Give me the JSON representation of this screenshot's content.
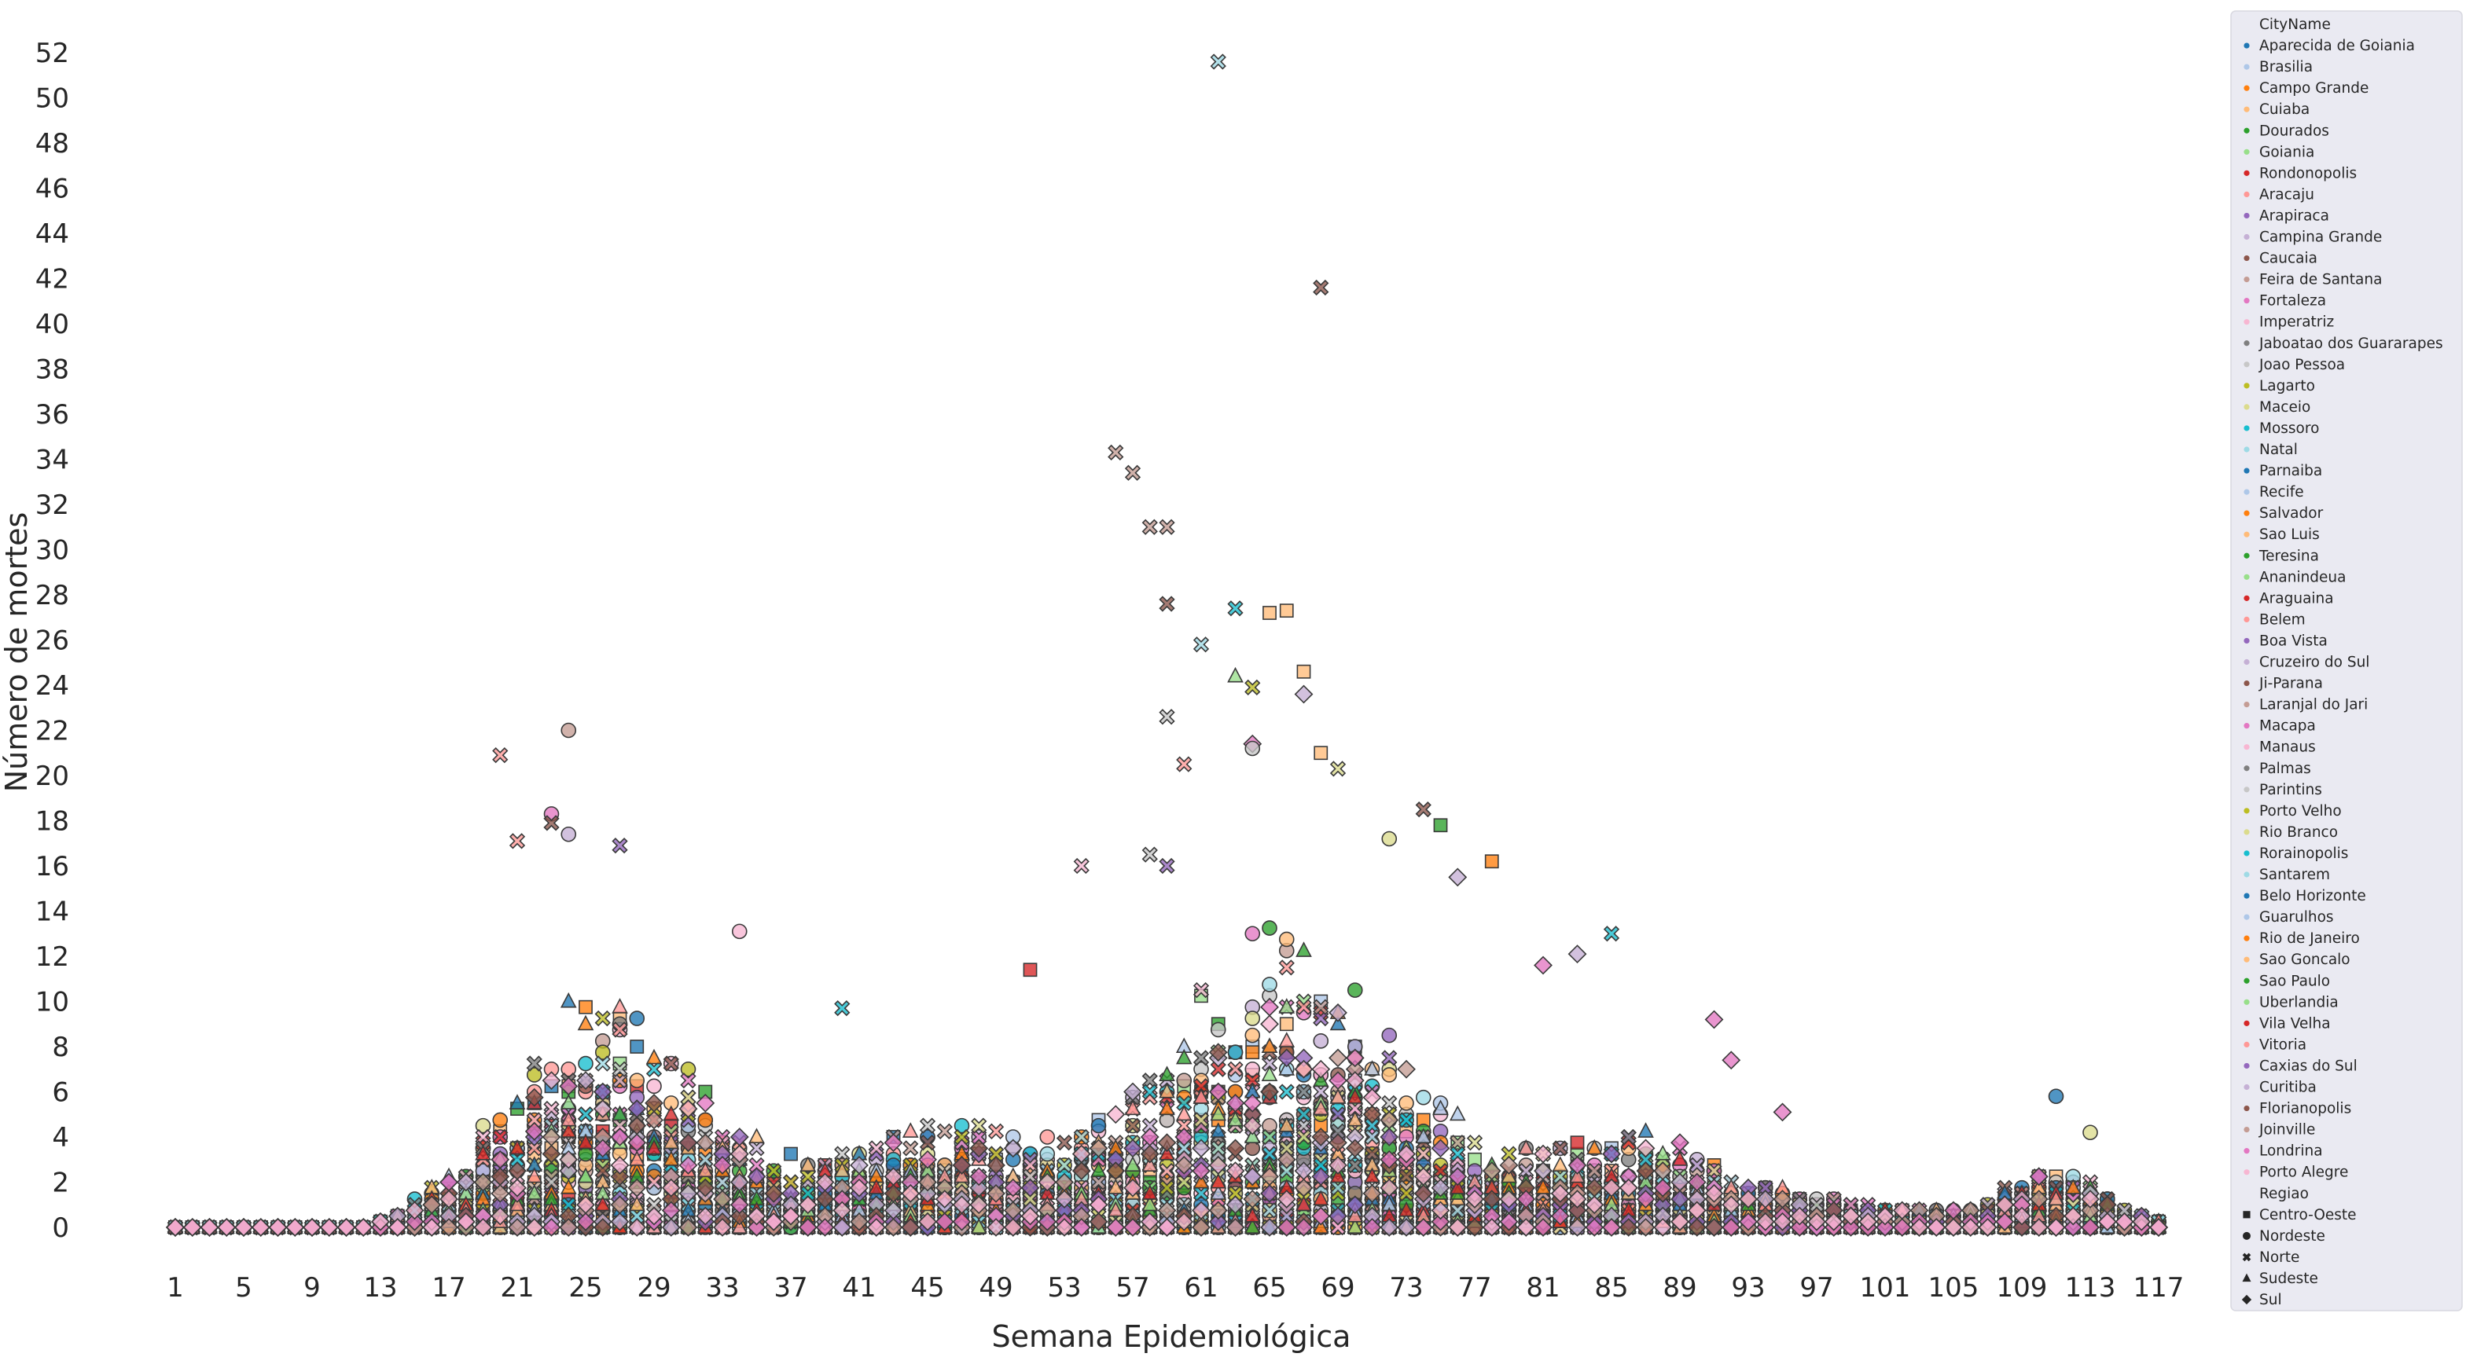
{
  "chart_data": {
    "type": "scatter",
    "xlabel": "Semana Epidemiológica",
    "ylabel": "Número de mortes",
    "x_ticks": [
      1,
      5,
      9,
      13,
      17,
      21,
      25,
      29,
      33,
      37,
      41,
      45,
      49,
      53,
      57,
      61,
      65,
      69,
      73,
      77,
      81,
      85,
      89,
      93,
      97,
      101,
      105,
      109,
      113,
      117
    ],
    "y_ticks": [
      0,
      2,
      4,
      6,
      8,
      10,
      12,
      14,
      16,
      18,
      20,
      22,
      24,
      26,
      28,
      30,
      32,
      34,
      36,
      38,
      40,
      42,
      44,
      46,
      48,
      50,
      52
    ],
    "xlim": [
      0,
      119
    ],
    "ylim": [
      -2.5,
      53.5
    ],
    "grid": false,
    "legend_position": "right",
    "legend": {
      "hue_title": "CityName",
      "style_title": "Regiao",
      "cities": [
        {
          "name": "Aparecida de Goiania",
          "color": "#1f77b4",
          "region": "Centro-Oeste"
        },
        {
          "name": "Brasilia",
          "color": "#aec7e8",
          "region": "Centro-Oeste"
        },
        {
          "name": "Campo Grande",
          "color": "#ff7f0e",
          "region": "Centro-Oeste"
        },
        {
          "name": "Cuiaba",
          "color": "#ffbb78",
          "region": "Centro-Oeste"
        },
        {
          "name": "Dourados",
          "color": "#2ca02c",
          "region": "Centro-Oeste"
        },
        {
          "name": "Goiania",
          "color": "#98df8a",
          "region": "Centro-Oeste"
        },
        {
          "name": "Rondonopolis",
          "color": "#d62728",
          "region": "Centro-Oeste"
        },
        {
          "name": "Aracaju",
          "color": "#ff9896",
          "region": "Nordeste"
        },
        {
          "name": "Arapiraca",
          "color": "#9467bd",
          "region": "Nordeste"
        },
        {
          "name": "Campina Grande",
          "color": "#c5b0d5",
          "region": "Nordeste"
        },
        {
          "name": "Caucaia",
          "color": "#8c564b",
          "region": "Nordeste"
        },
        {
          "name": "Feira de Santana",
          "color": "#c49c94",
          "region": "Nordeste"
        },
        {
          "name": "Fortaleza",
          "color": "#e377c2",
          "region": "Nordeste"
        },
        {
          "name": "Imperatriz",
          "color": "#f7b6d2",
          "region": "Nordeste"
        },
        {
          "name": "Jaboatao dos Guararapes",
          "color": "#7f7f7f",
          "region": "Nordeste"
        },
        {
          "name": "Joao Pessoa",
          "color": "#c7c7c7",
          "region": "Nordeste"
        },
        {
          "name": "Lagarto",
          "color": "#bcbd22",
          "region": "Nordeste"
        },
        {
          "name": "Maceio",
          "color": "#dbdb8d",
          "region": "Nordeste"
        },
        {
          "name": "Mossoro",
          "color": "#17becf",
          "region": "Nordeste"
        },
        {
          "name": "Natal",
          "color": "#9edae5",
          "region": "Nordeste"
        },
        {
          "name": "Parnaiba",
          "color": "#1f77b4",
          "region": "Nordeste"
        },
        {
          "name": "Recife",
          "color": "#aec7e8",
          "region": "Nordeste"
        },
        {
          "name": "Salvador",
          "color": "#ff7f0e",
          "region": "Nordeste"
        },
        {
          "name": "Sao Luis",
          "color": "#ffbb78",
          "region": "Nordeste"
        },
        {
          "name": "Teresina",
          "color": "#2ca02c",
          "region": "Nordeste"
        },
        {
          "name": "Ananindeua",
          "color": "#98df8a",
          "region": "Norte"
        },
        {
          "name": "Araguaina",
          "color": "#d62728",
          "region": "Norte"
        },
        {
          "name": "Belem",
          "color": "#ff9896",
          "region": "Norte"
        },
        {
          "name": "Boa Vista",
          "color": "#9467bd",
          "region": "Norte"
        },
        {
          "name": "Cruzeiro do Sul",
          "color": "#c5b0d5",
          "region": "Norte"
        },
        {
          "name": "Ji-Parana",
          "color": "#8c564b",
          "region": "Norte"
        },
        {
          "name": "Laranjal do Jari",
          "color": "#c49c94",
          "region": "Norte"
        },
        {
          "name": "Macapa",
          "color": "#e377c2",
          "region": "Norte"
        },
        {
          "name": "Manaus",
          "color": "#f7b6d2",
          "region": "Norte"
        },
        {
          "name": "Palmas",
          "color": "#7f7f7f",
          "region": "Norte"
        },
        {
          "name": "Parintins",
          "color": "#c7c7c7",
          "region": "Norte"
        },
        {
          "name": "Porto Velho",
          "color": "#bcbd22",
          "region": "Norte"
        },
        {
          "name": "Rio Branco",
          "color": "#dbdb8d",
          "region": "Norte"
        },
        {
          "name": "Rorainopolis",
          "color": "#17becf",
          "region": "Norte"
        },
        {
          "name": "Santarem",
          "color": "#9edae5",
          "region": "Norte"
        },
        {
          "name": "Belo Horizonte",
          "color": "#1f77b4",
          "region": "Sudeste"
        },
        {
          "name": "Guarulhos",
          "color": "#aec7e8",
          "region": "Sudeste"
        },
        {
          "name": "Rio de Janeiro",
          "color": "#ff7f0e",
          "region": "Sudeste"
        },
        {
          "name": "Sao Goncalo",
          "color": "#ffbb78",
          "region": "Sudeste"
        },
        {
          "name": "Sao Paulo",
          "color": "#2ca02c",
          "region": "Sudeste"
        },
        {
          "name": "Uberlandia",
          "color": "#98df8a",
          "region": "Sudeste"
        },
        {
          "name": "Vila Velha",
          "color": "#d62728",
          "region": "Sudeste"
        },
        {
          "name": "Vitoria",
          "color": "#ff9896",
          "region": "Sudeste"
        },
        {
          "name": "Caxias do Sul",
          "color": "#9467bd",
          "region": "Sul"
        },
        {
          "name": "Curitiba",
          "color": "#c5b0d5",
          "region": "Sul"
        },
        {
          "name": "Florianopolis",
          "color": "#8c564b",
          "region": "Sul"
        },
        {
          "name": "Joinville",
          "color": "#c49c94",
          "region": "Sul"
        },
        {
          "name": "Londrina",
          "color": "#e377c2",
          "region": "Sul"
        },
        {
          "name": "Porto Alegre",
          "color": "#f7b6d2",
          "region": "Sul"
        }
      ],
      "regions": [
        {
          "name": "Centro-Oeste",
          "marker": "square"
        },
        {
          "name": "Nordeste",
          "marker": "circle"
        },
        {
          "name": "Norte",
          "marker": "x"
        },
        {
          "name": "Sudeste",
          "marker": "triangle"
        },
        {
          "name": "Sul",
          "marker": "diamond"
        }
      ]
    },
    "notable_points": [
      {
        "x": 62,
        "y": 51.6,
        "region": "Norte",
        "color": "#9edae5"
      },
      {
        "x": 68,
        "y": 41.6,
        "region": "Norte",
        "color": "#8c564b"
      },
      {
        "x": 56,
        "y": 34.3,
        "region": "Norte",
        "color": "#c49c94"
      },
      {
        "x": 57,
        "y": 33.4,
        "region": "Norte",
        "color": "#c49c94"
      },
      {
        "x": 58,
        "y": 31.0,
        "region": "Norte",
        "color": "#c49c94"
      },
      {
        "x": 59,
        "y": 31.0,
        "region": "Norte",
        "color": "#c49c94"
      },
      {
        "x": 59,
        "y": 27.6,
        "region": "Norte",
        "color": "#8c564b"
      },
      {
        "x": 63,
        "y": 27.4,
        "region": "Norte",
        "color": "#17becf"
      },
      {
        "x": 65,
        "y": 27.2,
        "region": "Centro-Oeste",
        "color": "#ffbb78"
      },
      {
        "x": 66,
        "y": 27.3,
        "region": "Centro-Oeste",
        "color": "#ffbb78"
      },
      {
        "x": 61,
        "y": 25.8,
        "region": "Norte",
        "color": "#9edae5"
      },
      {
        "x": 67,
        "y": 24.6,
        "region": "Centro-Oeste",
        "color": "#ffbb78"
      },
      {
        "x": 63,
        "y": 24.4,
        "region": "Sudeste",
        "color": "#98df8a"
      },
      {
        "x": 64,
        "y": 23.9,
        "region": "Norte",
        "color": "#bcbd22"
      },
      {
        "x": 67,
        "y": 23.6,
        "region": "Sul",
        "color": "#c5b0d5"
      },
      {
        "x": 24,
        "y": 22.0,
        "region": "Nordeste",
        "color": "#c49c94"
      },
      {
        "x": 59,
        "y": 22.6,
        "region": "Norte",
        "color": "#c7c7c7"
      },
      {
        "x": 20,
        "y": 20.9,
        "region": "Norte",
        "color": "#ff9896"
      },
      {
        "x": 64,
        "y": 21.4,
        "region": "Sul",
        "color": "#e377c2"
      },
      {
        "x": 64,
        "y": 21.2,
        "region": "Nordeste",
        "color": "#c7c7c7"
      },
      {
        "x": 68,
        "y": 21.0,
        "region": "Centro-Oeste",
        "color": "#ffbb78"
      },
      {
        "x": 69,
        "y": 20.3,
        "region": "Norte",
        "color": "#dbdb8d"
      },
      {
        "x": 60,
        "y": 20.5,
        "region": "Norte",
        "color": "#ff9896"
      },
      {
        "x": 23,
        "y": 18.3,
        "region": "Nordeste",
        "color": "#e377c2"
      },
      {
        "x": 23,
        "y": 17.9,
        "region": "Norte",
        "color": "#8c564b"
      },
      {
        "x": 24,
        "y": 17.4,
        "region": "Nordeste",
        "color": "#c5b0d5"
      },
      {
        "x": 21,
        "y": 17.1,
        "region": "Norte",
        "color": "#ff9896"
      },
      {
        "x": 27,
        "y": 16.9,
        "region": "Norte",
        "color": "#9467bd"
      },
      {
        "x": 74,
        "y": 18.5,
        "region": "Norte",
        "color": "#8c564b"
      },
      {
        "x": 75,
        "y": 17.8,
        "region": "Centro-Oeste",
        "color": "#2ca02c"
      },
      {
        "x": 72,
        "y": 17.2,
        "region": "Nordeste",
        "color": "#dbdb8d"
      },
      {
        "x": 78,
        "y": 16.2,
        "region": "Centro-Oeste",
        "color": "#ff7f0e"
      },
      {
        "x": 54,
        "y": 16.0,
        "region": "Norte",
        "color": "#f7b6d2"
      },
      {
        "x": 58,
        "y": 16.5,
        "region": "Norte",
        "color": "#c7c7c7"
      },
      {
        "x": 59,
        "y": 16.0,
        "region": "Norte",
        "color": "#9467bd"
      },
      {
        "x": 76,
        "y": 15.5,
        "region": "Sul",
        "color": "#c5b0d5"
      },
      {
        "x": 85,
        "y": 13.0,
        "region": "Norte",
        "color": "#17becf"
      },
      {
        "x": 83,
        "y": 12.1,
        "region": "Sul",
        "color": "#c5b0d5"
      },
      {
        "x": 81,
        "y": 11.6,
        "region": "Sul",
        "color": "#e377c2"
      },
      {
        "x": 51,
        "y": 11.4,
        "region": "Centro-Oeste",
        "color": "#d62728"
      },
      {
        "x": 34,
        "y": 13.1,
        "region": "Nordeste",
        "color": "#f7b6d2"
      },
      {
        "x": 40,
        "y": 9.7,
        "region": "Norte",
        "color": "#17becf"
      },
      {
        "x": 91,
        "y": 9.2,
        "region": "Sul",
        "color": "#e377c2"
      },
      {
        "x": 92,
        "y": 7.4,
        "region": "Sul",
        "color": "#e377c2"
      },
      {
        "x": 111,
        "y": 5.8,
        "region": "Nordeste",
        "color": "#1f77b4"
      },
      {
        "x": 95,
        "y": 5.1,
        "region": "Sul",
        "color": "#e377c2"
      },
      {
        "x": 113,
        "y": 4.2,
        "region": "Nordeste",
        "color": "#dbdb8d"
      }
    ]
  }
}
